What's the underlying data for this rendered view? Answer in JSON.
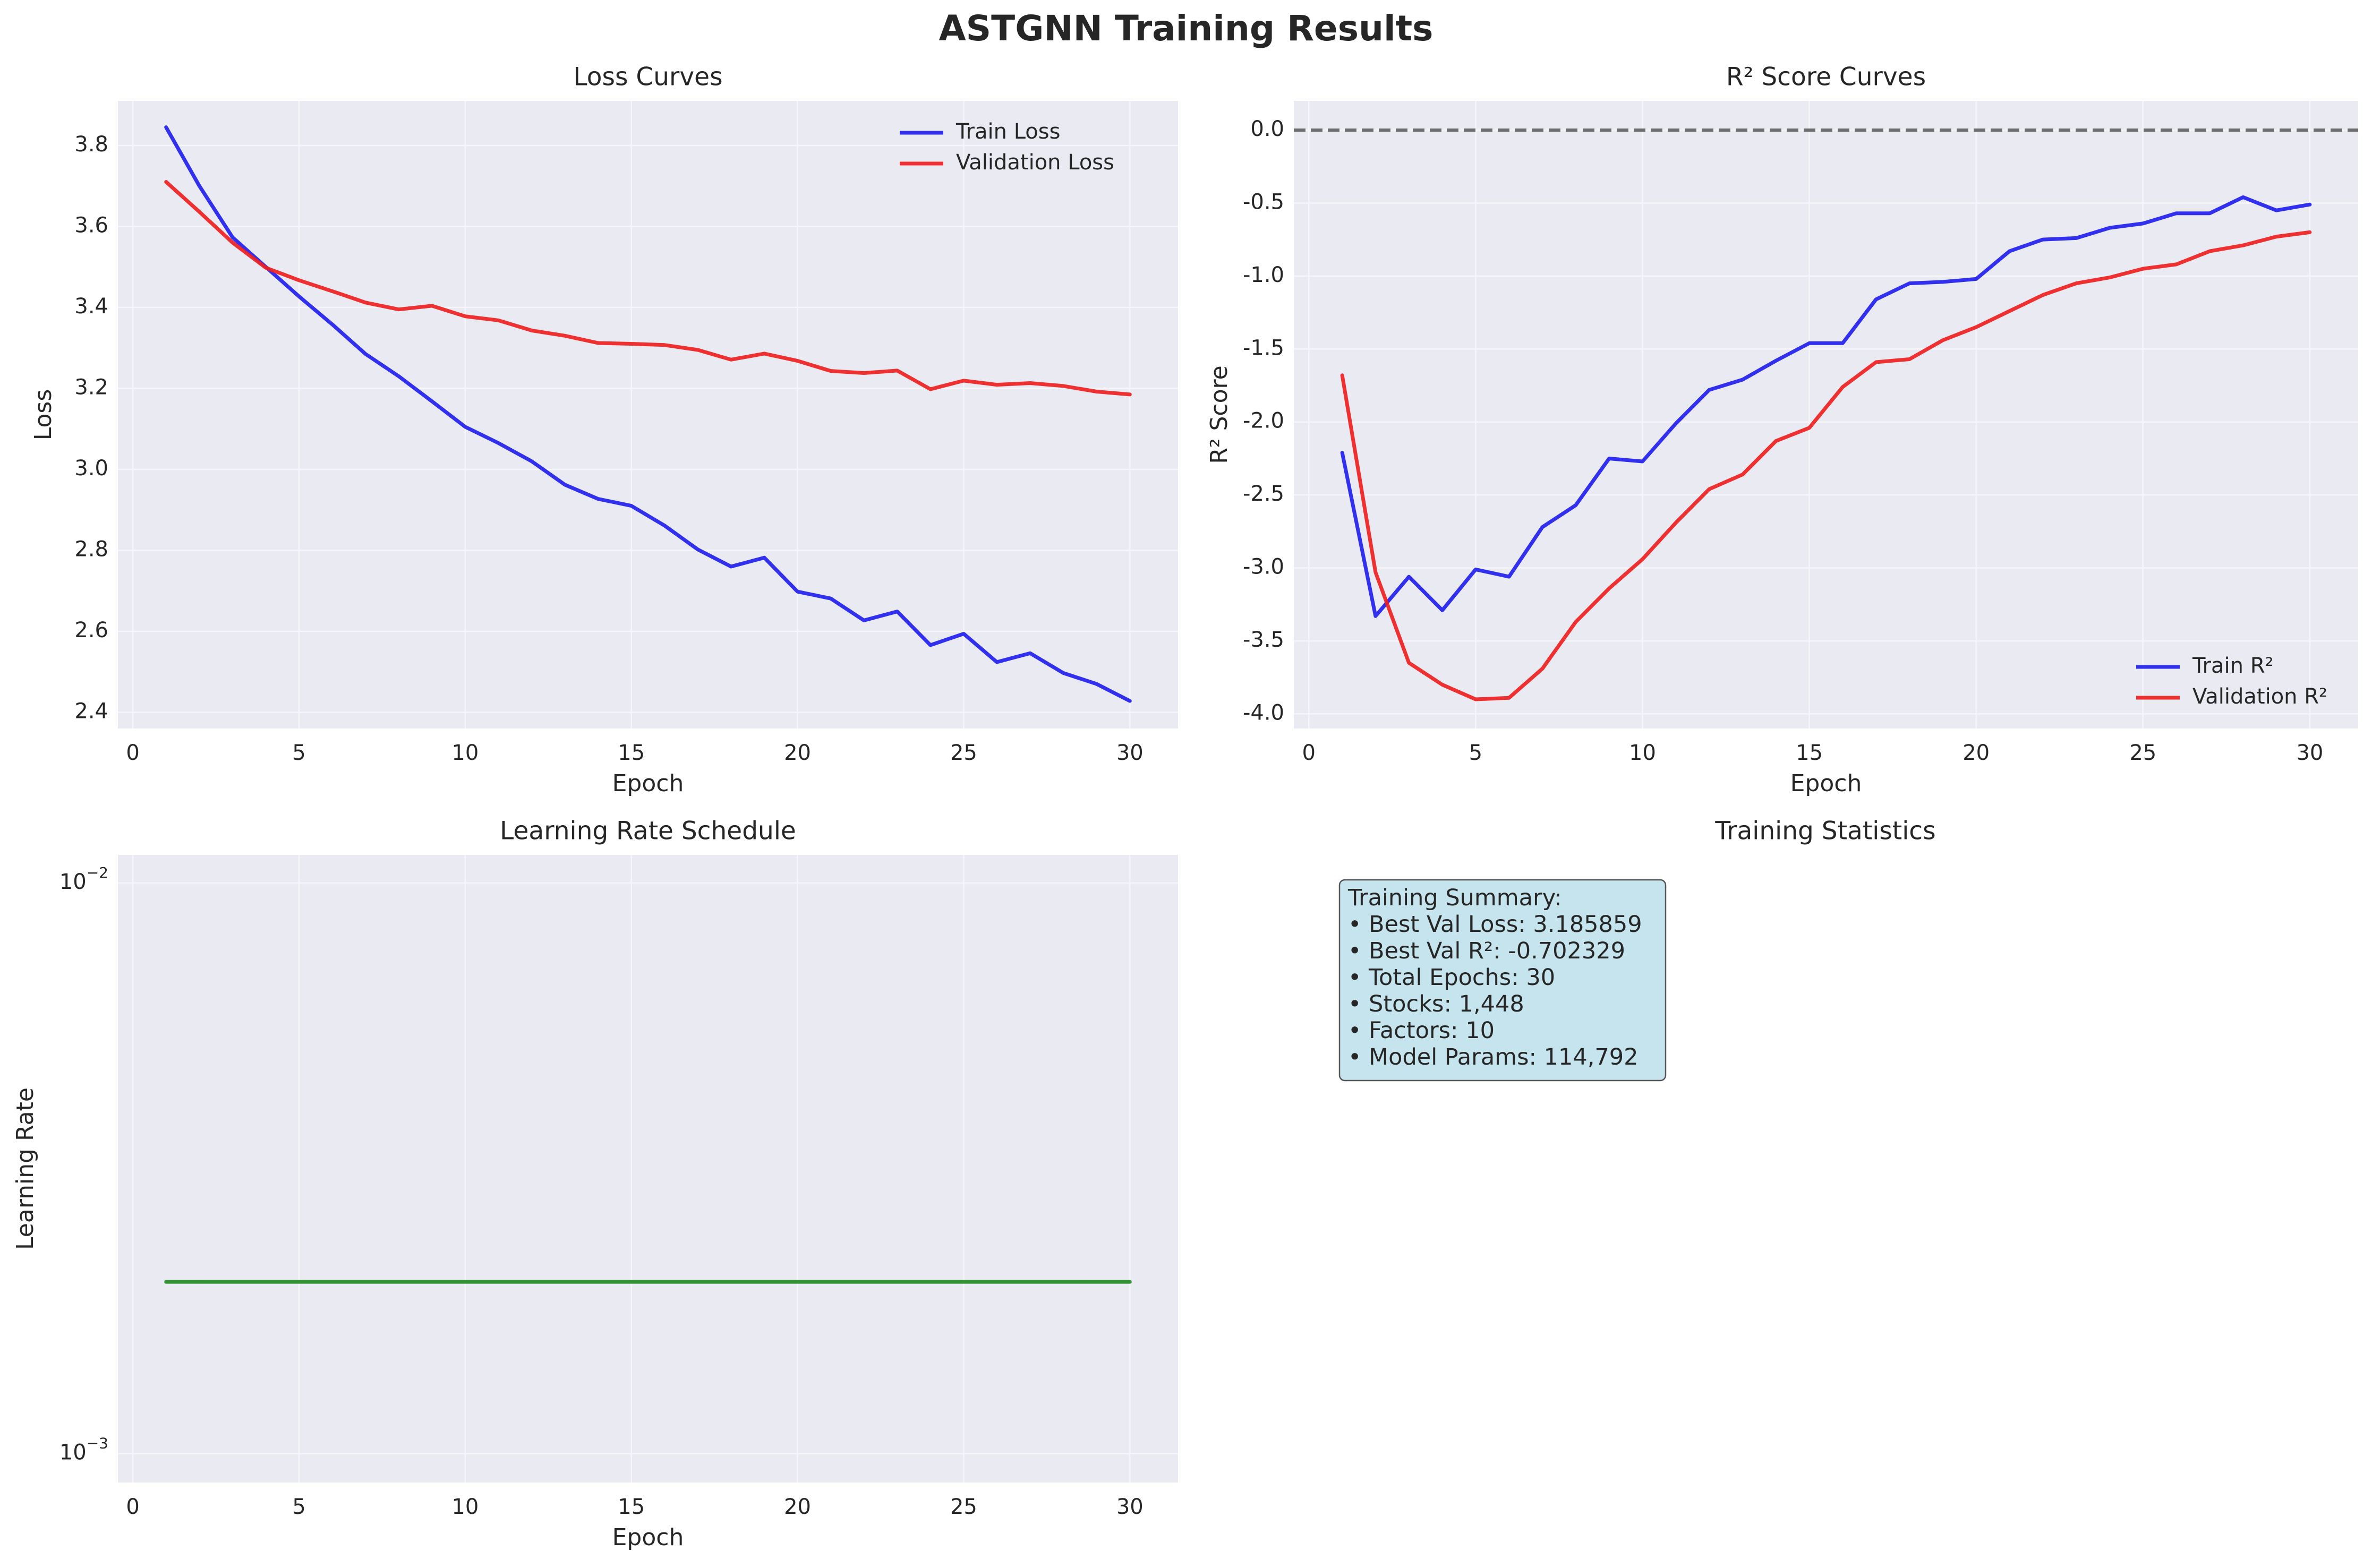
{
  "figure": {
    "title": "ASTGNN Training Results"
  },
  "chart_data": [
    {
      "type": "line",
      "title": "Loss Curves",
      "xlabel": "Epoch",
      "ylabel": "Loss",
      "xlim": [
        -0.45,
        31.45
      ],
      "ylim": [
        2.36,
        3.91
      ],
      "xticks": [
        0,
        5,
        10,
        15,
        20,
        25,
        30
      ],
      "xtick_labels": [
        "0",
        "5",
        "10",
        "15",
        "20",
        "25",
        "30"
      ],
      "yticks": [
        2.4,
        2.6,
        2.8,
        3.0,
        3.2,
        3.4,
        3.6,
        3.8
      ],
      "ytick_labels": [
        "2.4",
        "2.6",
        "2.8",
        "3.0",
        "3.2",
        "3.4",
        "3.6",
        "3.8"
      ],
      "grid": true,
      "legend": "upper right",
      "x": [
        1,
        2,
        3,
        4,
        5,
        6,
        7,
        8,
        9,
        10,
        11,
        12,
        13,
        14,
        15,
        16,
        17,
        18,
        19,
        20,
        21,
        22,
        23,
        24,
        25,
        26,
        27,
        28,
        29,
        30
      ],
      "series": [
        {
          "name": "Train Loss",
          "color": "#2020ee",
          "values": [
            3.845,
            3.7,
            3.573,
            3.5,
            3.427,
            3.358,
            3.285,
            3.23,
            3.168,
            3.105,
            3.065,
            3.02,
            2.962,
            2.927,
            2.91,
            2.861,
            2.802,
            2.76,
            2.782,
            2.698,
            2.681,
            2.627,
            2.649,
            2.566,
            2.594,
            2.524,
            2.546,
            2.497,
            2.47,
            2.428
          ]
        },
        {
          "name": "Validation Loss",
          "color": "#ee2020",
          "values": [
            3.71,
            3.636,
            3.56,
            3.498,
            3.467,
            3.44,
            3.412,
            3.395,
            3.404,
            3.378,
            3.368,
            3.343,
            3.33,
            3.312,
            3.31,
            3.307,
            3.295,
            3.271,
            3.286,
            3.268,
            3.243,
            3.238,
            3.244,
            3.198,
            3.219,
            3.209,
            3.213,
            3.206,
            3.192,
            3.185
          ]
        }
      ]
    },
    {
      "type": "line",
      "title": "R² Score Curves",
      "xlabel": "Epoch",
      "ylabel": "R² Score",
      "xlim": [
        -0.45,
        31.45
      ],
      "ylim": [
        -4.1,
        0.2
      ],
      "xticks": [
        0,
        5,
        10,
        15,
        20,
        25,
        30
      ],
      "xtick_labels": [
        "0",
        "5",
        "10",
        "15",
        "20",
        "25",
        "30"
      ],
      "yticks": [
        -4.0,
        -3.5,
        -3.0,
        -2.5,
        -2.0,
        -1.5,
        -1.0,
        -0.5,
        0.0
      ],
      "ytick_labels": [
        "-4.0",
        "-3.5",
        "-3.0",
        "-2.5",
        "-2.0",
        "-1.5",
        "-1.0",
        "-0.5",
        "0.0"
      ],
      "grid": true,
      "legend": "lower right",
      "hline": {
        "y": 0.0,
        "color": "#6e6e6e"
      },
      "x": [
        1,
        2,
        3,
        4,
        5,
        6,
        7,
        8,
        9,
        10,
        11,
        12,
        13,
        14,
        15,
        16,
        17,
        18,
        19,
        20,
        21,
        22,
        23,
        24,
        25,
        26,
        27,
        28,
        29,
        30
      ],
      "series": [
        {
          "name": "Train R²",
          "color": "#2020ee",
          "values": [
            -2.21,
            -3.33,
            -3.06,
            -3.29,
            -3.01,
            -3.06,
            -2.72,
            -2.57,
            -2.25,
            -2.27,
            -2.01,
            -1.78,
            -1.71,
            -1.58,
            -1.46,
            -1.46,
            -1.16,
            -1.05,
            -1.04,
            -1.02,
            -0.83,
            -0.75,
            -0.74,
            -0.67,
            -0.64,
            -0.57,
            -0.57,
            -0.46,
            -0.55,
            -0.51
          ]
        },
        {
          "name": "Validation R²",
          "color": "#ee2020",
          "values": [
            -1.68,
            -3.03,
            -3.65,
            -3.8,
            -3.9,
            -3.89,
            -3.69,
            -3.37,
            -3.14,
            -2.94,
            -2.69,
            -2.46,
            -2.36,
            -2.13,
            -2.04,
            -1.76,
            -1.59,
            -1.57,
            -1.44,
            -1.35,
            -1.24,
            -1.13,
            -1.05,
            -1.01,
            -0.95,
            -0.92,
            -0.83,
            -0.79,
            -0.73,
            -0.7
          ]
        }
      ]
    },
    {
      "type": "line",
      "title": "Learning Rate Schedule",
      "xlabel": "Epoch",
      "ylabel": "Learning Rate",
      "xlim": [
        -0.45,
        31.45
      ],
      "ylim": [
        0.00089,
        0.0112
      ],
      "yscale": "log",
      "xticks": [
        0,
        5,
        10,
        15,
        20,
        25,
        30
      ],
      "xtick_labels": [
        "0",
        "5",
        "10",
        "15",
        "20",
        "25",
        "30"
      ],
      "yticks": [
        0.001,
        0.01
      ],
      "ytick_labels": [
        {
          "base": "10",
          "exp": "−3"
        },
        {
          "base": "10",
          "exp": "−2"
        }
      ],
      "grid": true,
      "x": [
        1,
        2,
        3,
        4,
        5,
        6,
        7,
        8,
        9,
        10,
        11,
        12,
        13,
        14,
        15,
        16,
        17,
        18,
        19,
        20,
        21,
        22,
        23,
        24,
        25,
        26,
        27,
        28,
        29,
        30
      ],
      "series": [
        {
          "color": "#228b22",
          "values": [
            0.002,
            0.002,
            0.002,
            0.002,
            0.002,
            0.002,
            0.002,
            0.002,
            0.002,
            0.002,
            0.002,
            0.002,
            0.002,
            0.002,
            0.002,
            0.002,
            0.002,
            0.002,
            0.002,
            0.002,
            0.002,
            0.002,
            0.002,
            0.002,
            0.002,
            0.002,
            0.002,
            0.002,
            0.002,
            0.002
          ]
        }
      ]
    }
  ],
  "stats_panel": {
    "title": "Training Statistics",
    "box_color": "#add8e6",
    "lines": [
      "Training Summary:",
      "• Best Val Loss: 3.185859",
      "• Best Val R²: -0.702329",
      "• Total Epochs: 30",
      "• Stocks: 1,448",
      "• Factors: 10",
      "• Model Params: 114,792"
    ]
  }
}
